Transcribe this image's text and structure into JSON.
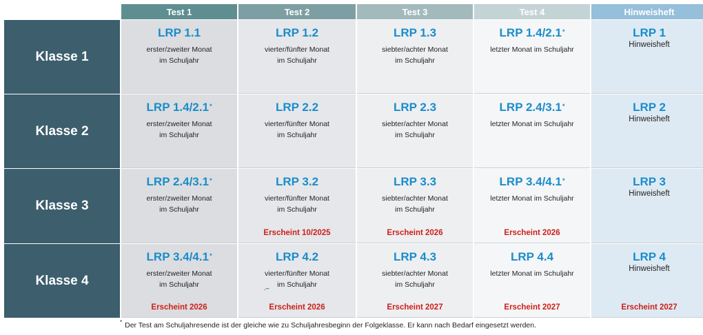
{
  "columns": [
    "Test 1",
    "Test 2",
    "Test 3",
    "Test 4",
    "Hinweisheft"
  ],
  "rows": [
    {
      "label": "Klasse 1",
      "cells": [
        {
          "code": "LRP 1.1",
          "star": "",
          "desc1": "erster/zweiter Monat",
          "desc2": "im Schuljahr",
          "release": ""
        },
        {
          "code": "LRP 1.2",
          "star": "",
          "desc1": "vierter/fünfter Monat",
          "desc2": "im Schuljahr",
          "release": ""
        },
        {
          "code": "LRP 1.3",
          "star": "",
          "desc1": "siebter/achter Monat",
          "desc2": "im Schuljahr",
          "release": ""
        },
        {
          "code": "LRP 1.4/2.1",
          "star": "*",
          "desc1": "letzter Monat im Schuljahr",
          "desc2": "",
          "release": ""
        },
        {
          "code": "LRP 1",
          "sub": "Hinweisheft",
          "release": ""
        }
      ]
    },
    {
      "label": "Klasse 2",
      "cells": [
        {
          "code": "LRP 1.4/2.1",
          "star": "*",
          "desc1": "erster/zweiter Monat",
          "desc2": "im Schuljahr",
          "release": ""
        },
        {
          "code": "LRP 2.2",
          "star": "",
          "desc1": "vierter/fünfter Monat",
          "desc2": "im Schuljahr",
          "release": ""
        },
        {
          "code": "LRP 2.3",
          "star": "",
          "desc1": "siebter/achter Monat",
          "desc2": "im Schuljahr",
          "release": ""
        },
        {
          "code": "LRP 2.4/3.1",
          "star": "*",
          "desc1": "letzter Monat im Schuljahr",
          "desc2": "",
          "release": ""
        },
        {
          "code": "LRP 2",
          "sub": "Hinweisheft",
          "release": ""
        }
      ]
    },
    {
      "label": "Klasse 3",
      "cells": [
        {
          "code": "LRP 2.4/3.1",
          "star": "*",
          "desc1": "erster/zweiter Monat",
          "desc2": "im Schuljahr",
          "release": ""
        },
        {
          "code": "LRP 3.2",
          "star": "",
          "desc1": "vierter/fünfter Monat",
          "desc2": "im Schuljahr",
          "release": "Erscheint 10/2025"
        },
        {
          "code": "LRP 3.3",
          "star": "",
          "desc1": "siebter/achter Monat",
          "desc2": "im Schuljahr",
          "release": "Erscheint 2026"
        },
        {
          "code": "LRP 3.4/4.1",
          "star": "*",
          "desc1": "letzter Monat im Schuljahr",
          "desc2": "",
          "release": "Erscheint 2026"
        },
        {
          "code": "LRP 3",
          "sub": "Hinweisheft",
          "release": ""
        }
      ]
    },
    {
      "label": "Klasse 4",
      "cells": [
        {
          "code": "LRP 3.4/4.1",
          "star": "*",
          "desc1": "erster/zweiter Monat",
          "desc2": "im Schuljahr",
          "release": "Erscheint 2026"
        },
        {
          "code": "LRP 4.2",
          "star": "",
          "desc1": "vierter/fünfter Monat",
          "desc2": "im Schuljahr",
          "release": "Erscheint 2026",
          "mark": ".–"
        },
        {
          "code": "LRP 4.3",
          "star": "",
          "desc1": "siebter/achter Monat",
          "desc2": "im Schuljahr",
          "release": "Erscheint 2027"
        },
        {
          "code": "LRP 4.4",
          "star": "",
          "desc1": "letzter Monat im Schuljahr",
          "desc2": "",
          "release": "Erscheint 2027"
        },
        {
          "code": "LRP 4",
          "sub": "Hinweisheft",
          "release": "Erscheint 2027"
        }
      ]
    }
  ],
  "footnote": {
    "star": "*",
    "text": "Der Test am Schuljahresende ist der gleiche wie zu Schuljahresbeginn der Folgeklasse. Er kann nach Bedarf eingesetzt werden."
  },
  "colors": {
    "row_header": "#3c5e6d",
    "code_blue": "#1a8ccb",
    "release_red": "#cc1f1a",
    "hinweisheft_header": "#95bfda"
  }
}
